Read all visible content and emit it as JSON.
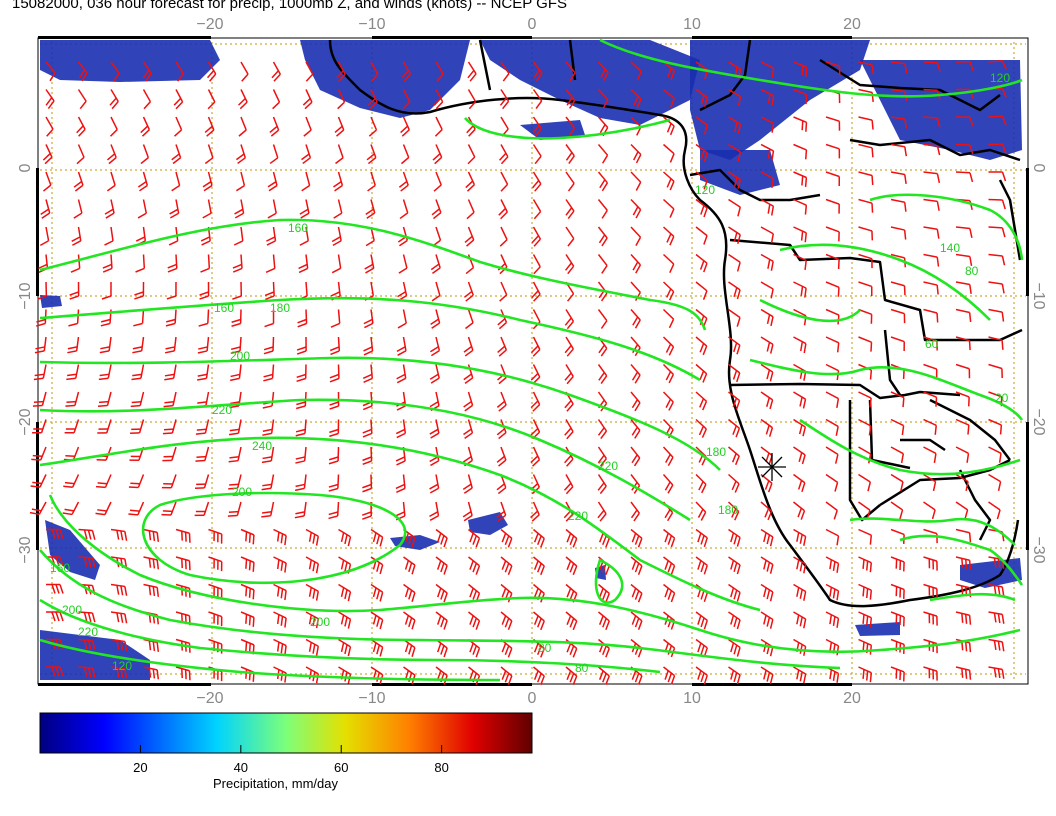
{
  "title": "15082000, 036 hour forecast for precip, 1000mb Z, and winds (knots) -- NCEP GFS",
  "map": {
    "lon_ticks_top": [
      "−20",
      "−10",
      "0",
      "10",
      "20"
    ],
    "lon_ticks_bottom": [
      "−20",
      "−10",
      "0",
      "10",
      "20"
    ],
    "lat_ticks_left": [
      "0",
      "−10",
      "−20",
      "−30"
    ],
    "lat_ticks_right": [
      "0",
      "−10",
      "−20",
      "−30"
    ],
    "contour_labels": [
      "160",
      "160",
      "180",
      "200",
      "220",
      "240",
      "200",
      "220",
      "180",
      "160",
      "200",
      "220",
      "120",
      "180",
      "220",
      "200",
      "80",
      "80",
      "120",
      "140",
      "80",
      "60",
      "20",
      "120"
    ],
    "colors": {
      "contour": "#22e622",
      "wind_barb": "#ee1111",
      "grid": "#ccaa33",
      "coast": "#000000",
      "precip": "#1a2fb0"
    }
  },
  "colorbar": {
    "title": "Precipitation, mm/day",
    "ticks": [
      "20",
      "40",
      "60",
      "80"
    ],
    "tick_values": [
      20,
      40,
      60,
      80
    ],
    "range": [
      0,
      98
    ]
  }
}
